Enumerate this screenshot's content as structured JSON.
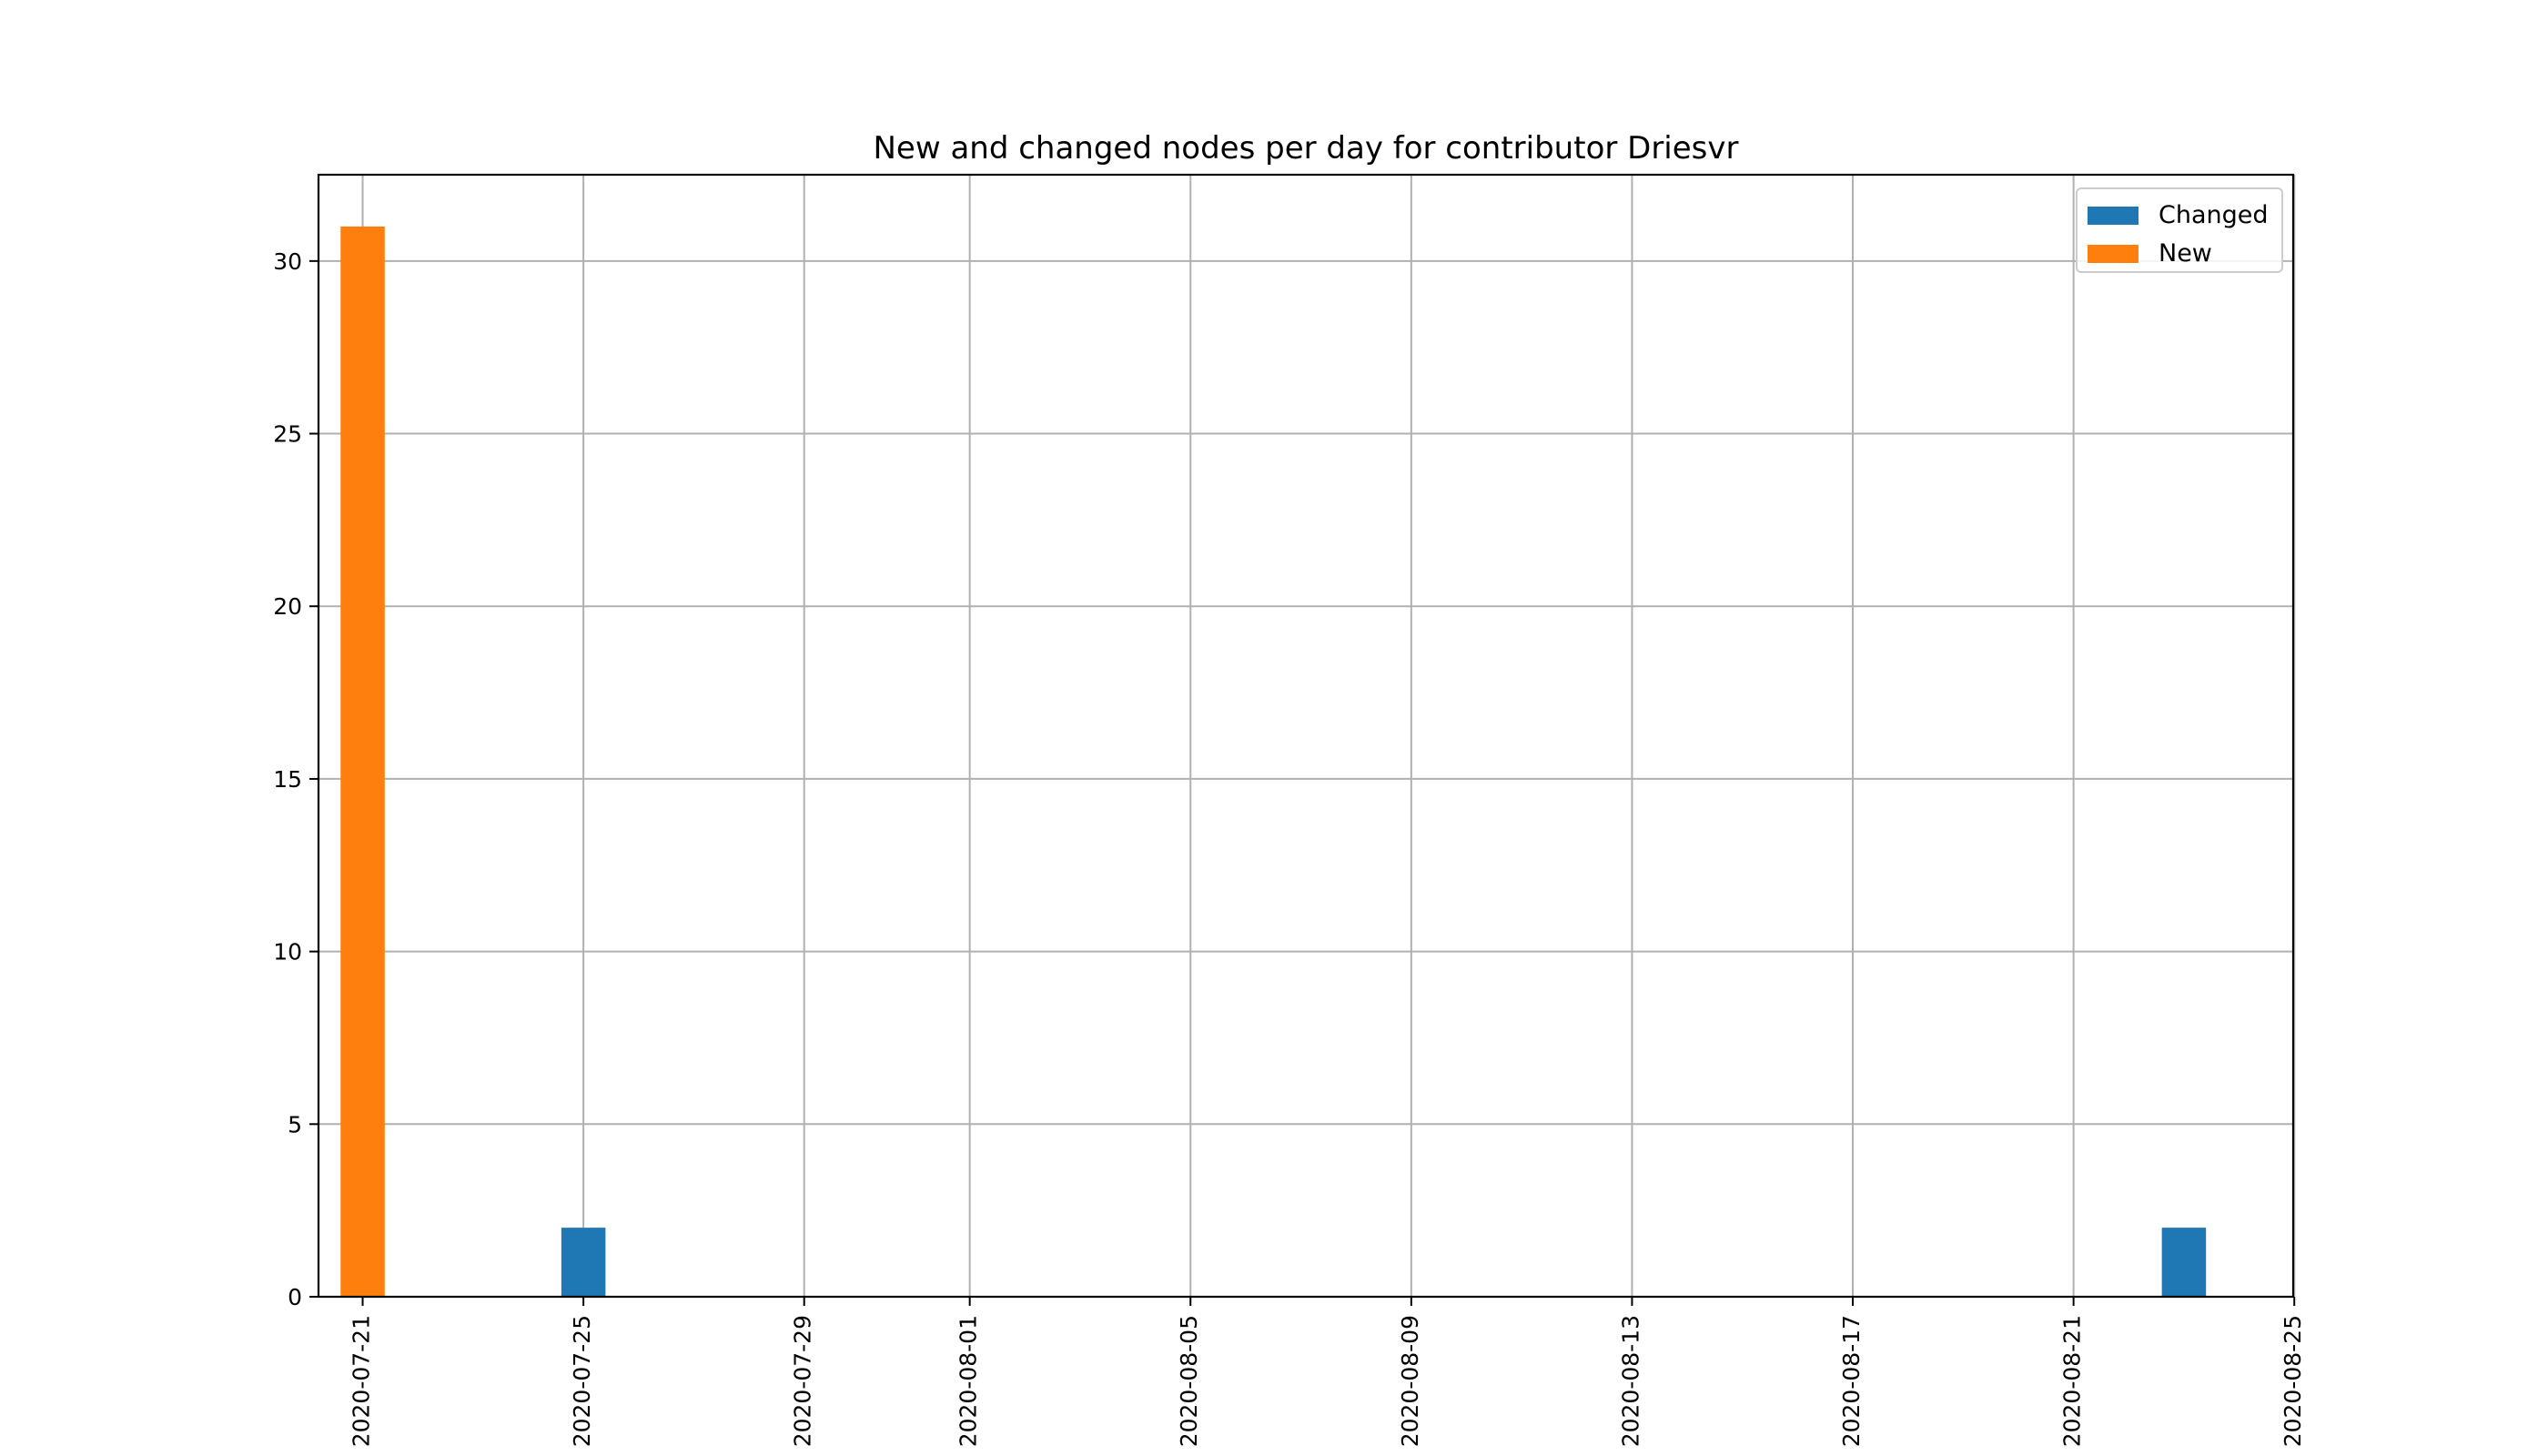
{
  "chart_data": {
    "type": "bar",
    "title": "New and changed nodes per day for contributor Driesvr",
    "xlabel": "",
    "ylabel": "",
    "x_axis_type": "date",
    "x_range": [
      "2020-07-19",
      "2020-08-25"
    ],
    "xticks": [
      "2020-07-21",
      "2020-07-25",
      "2020-07-29",
      "2020-08-01",
      "2020-08-05",
      "2020-08-09",
      "2020-08-13",
      "2020-08-17",
      "2020-08-21",
      "2020-08-25"
    ],
    "ylim": [
      0,
      32.5
    ],
    "yticks": [
      0,
      5,
      10,
      15,
      20,
      25,
      30
    ],
    "grid": true,
    "legend_position": "top-right",
    "series": [
      {
        "name": "Changed",
        "color": "#1f77b4",
        "points": [
          {
            "x": "2020-07-25",
            "y": 2
          },
          {
            "x": "2020-08-23",
            "y": 2
          }
        ]
      },
      {
        "name": "New",
        "color": "#ff7f0e",
        "points": [
          {
            "x": "2020-07-21",
            "y": 31
          }
        ]
      }
    ]
  }
}
